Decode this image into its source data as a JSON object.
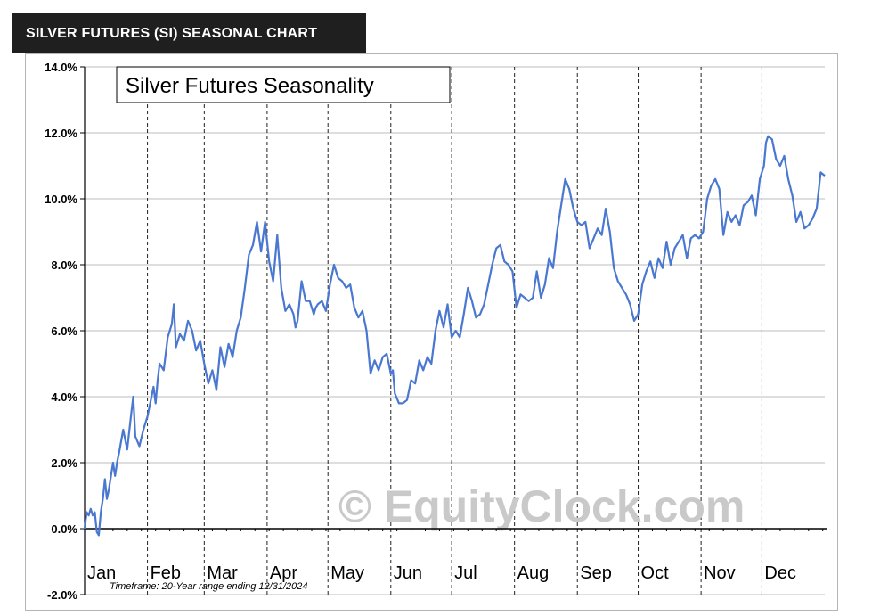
{
  "header": {
    "title": "SILVER FUTURES (SI) SEASONAL CHART"
  },
  "chart_data": {
    "type": "line",
    "title": "Silver Futures Seasonality",
    "footnote": "Timeframe: 20-Year range ending 12/31/2024",
    "watermark": "© EquityClock.com",
    "x_unit": "day_of_year",
    "x_range": [
      1,
      366
    ],
    "ylim": [
      -2.0,
      14.0
    ],
    "y_ticks": [
      {
        "value": 14,
        "label": "14.0%"
      },
      {
        "value": 12,
        "label": "12.0%"
      },
      {
        "value": 10,
        "label": "10.0%"
      },
      {
        "value": 8,
        "label": "8.0%"
      },
      {
        "value": 6,
        "label": "6.0%"
      },
      {
        "value": 4,
        "label": "4.0%"
      },
      {
        "value": 2,
        "label": "2.0%"
      },
      {
        "value": 0,
        "label": "0.0%"
      },
      {
        "value": -2,
        "label": "-2.0%"
      }
    ],
    "months": [
      {
        "label": "Jan",
        "start": 1
      },
      {
        "label": "Feb",
        "start": 32
      },
      {
        "label": "Mar",
        "start": 60
      },
      {
        "label": "Apr",
        "start": 91
      },
      {
        "label": "May",
        "start": 121
      },
      {
        "label": "Jun",
        "start": 152
      },
      {
        "label": "Jul",
        "start": 182
      },
      {
        "label": "Aug",
        "start": 213
      },
      {
        "label": "Sep",
        "start": 244
      },
      {
        "label": "Oct",
        "start": 274
      },
      {
        "label": "Nov",
        "start": 305
      },
      {
        "label": "Dec",
        "start": 335
      }
    ],
    "grid": true,
    "line_color": "#4a78d0",
    "series": [
      {
        "x": [
          1,
          2,
          3,
          4,
          5,
          6,
          7,
          8,
          9,
          10,
          11,
          12,
          13,
          14,
          15,
          16,
          17,
          18,
          20,
          22,
          24,
          25,
          26,
          28,
          30,
          32,
          34,
          35,
          36,
          37,
          38,
          40,
          42,
          44,
          45,
          46,
          48,
          50,
          52,
          54,
          56,
          58,
          60,
          62,
          64,
          66,
          68,
          70,
          72,
          74,
          76,
          78,
          80,
          82,
          84,
          86,
          88,
          90,
          92,
          94,
          96,
          98,
          100,
          102,
          104,
          105,
          106,
          108,
          110,
          112,
          114,
          115,
          116,
          118,
          120,
          122,
          124,
          126,
          128,
          130,
          132,
          134,
          136,
          138,
          140,
          142,
          144,
          146,
          148,
          150,
          152,
          153,
          154,
          156,
          158,
          160,
          162,
          164,
          166,
          168,
          170,
          172,
          174,
          176,
          178,
          180,
          182,
          184,
          186,
          188,
          190,
          192,
          194,
          196,
          198,
          200,
          202,
          204,
          206,
          208,
          210,
          212,
          214,
          216,
          218,
          220,
          222,
          224,
          226,
          228,
          230,
          232,
          234,
          236,
          238,
          240,
          242,
          244,
          246,
          248,
          250,
          252,
          254,
          256,
          258,
          260,
          262,
          264,
          266,
          268,
          270,
          272,
          274,
          276,
          278,
          280,
          282,
          284,
          286,
          288,
          290,
          292,
          294,
          296,
          298,
          300,
          302,
          304,
          306,
          308,
          310,
          312,
          314,
          316,
          318,
          320,
          322,
          324,
          326,
          328,
          330,
          332,
          334,
          336,
          337,
          338,
          340,
          342,
          344,
          346,
          348,
          350,
          352,
          354,
          356,
          358,
          360,
          362,
          364,
          366
        ],
        "y": [
          0.0,
          0.5,
          0.4,
          0.6,
          0.4,
          0.5,
          -0.1,
          -0.2,
          0.5,
          0.9,
          1.5,
          0.9,
          1.2,
          1.6,
          2.0,
          1.6,
          2.0,
          2.3,
          3.0,
          2.4,
          3.5,
          4.0,
          2.8,
          2.5,
          3.0,
          3.4,
          4.0,
          4.3,
          3.8,
          4.5,
          5.0,
          4.8,
          5.8,
          6.2,
          6.8,
          5.5,
          5.9,
          5.7,
          6.3,
          6.0,
          5.4,
          5.7,
          5.0,
          4.4,
          4.8,
          4.2,
          5.5,
          4.9,
          5.6,
          5.2,
          6.0,
          6.4,
          7.3,
          8.3,
          8.6,
          9.3,
          8.4,
          9.3,
          8.1,
          7.5,
          8.9,
          7.3,
          6.6,
          6.8,
          6.5,
          6.1,
          6.3,
          7.5,
          6.9,
          6.9,
          6.5,
          6.7,
          6.8,
          6.9,
          6.6,
          7.4,
          8.0,
          7.6,
          7.5,
          7.3,
          7.4,
          6.7,
          6.4,
          6.6,
          6.0,
          4.7,
          5.1,
          4.8,
          5.2,
          5.3,
          4.7,
          4.8,
          4.1,
          3.8,
          3.8,
          3.9,
          4.5,
          4.4,
          5.1,
          4.8,
          5.2,
          5.0,
          6.0,
          6.6,
          6.1,
          6.8,
          5.8,
          6.0,
          5.8,
          6.5,
          7.3,
          6.9,
          6.4,
          6.5,
          6.8,
          7.4,
          8.0,
          8.5,
          8.6,
          8.1,
          8.0,
          7.8,
          6.7,
          7.1,
          7.0,
          6.9,
          7.0,
          7.8,
          7.0,
          7.4,
          8.2,
          7.9,
          9.0,
          9.8,
          10.6,
          10.3,
          9.7,
          9.3,
          9.2,
          9.3,
          8.5,
          8.8,
          9.1,
          8.9,
          9.7,
          9.0,
          7.9,
          7.5,
          7.3,
          7.1,
          6.8,
          6.3,
          6.5,
          7.4,
          7.8,
          8.1,
          7.6,
          8.2,
          7.9,
          8.7,
          8.0,
          8.5,
          8.7,
          8.9,
          8.2,
          8.8,
          8.9,
          8.8,
          9.0,
          10.0,
          10.4,
          10.6,
          10.3,
          8.9,
          9.6,
          9.3,
          9.5,
          9.2,
          9.8,
          9.9,
          10.1,
          9.5,
          10.6,
          11.0,
          11.7,
          11.9,
          11.8,
          11.2,
          11.0,
          11.3,
          10.6,
          10.1,
          9.3,
          9.6,
          9.1,
          9.2,
          9.4,
          9.7,
          10.8,
          10.7
        ]
      }
    ]
  }
}
